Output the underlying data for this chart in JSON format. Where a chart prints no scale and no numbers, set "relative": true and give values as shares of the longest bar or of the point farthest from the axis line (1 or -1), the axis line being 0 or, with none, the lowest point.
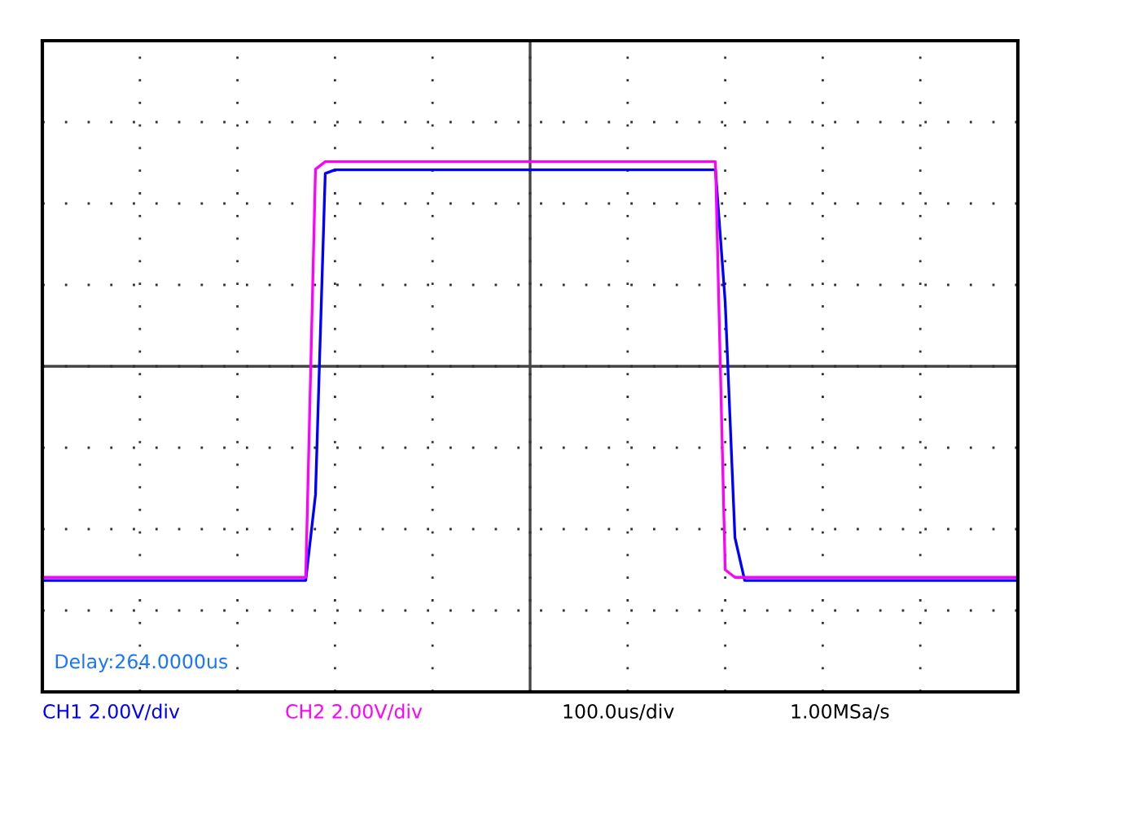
{
  "chart_data": {
    "type": "line",
    "relative": true,
    "grid": true,
    "legend": "bottom",
    "categories": [
      null,
      null,
      null,
      null,
      null,
      null,
      null,
      null,
      null,
      null,
      null,
      null,
      null,
      null,
      null,
      null,
      null,
      null,
      null,
      null,
      null,
      null,
      null,
      null,
      null,
      null,
      null,
      null,
      null,
      null,
      null,
      null,
      null,
      null,
      null,
      null,
      null,
      null,
      null,
      null,
      null,
      null,
      null,
      null,
      null,
      null,
      null,
      null,
      null,
      null,
      null,
      null,
      null,
      null,
      null,
      null,
      null,
      null,
      null,
      null,
      null,
      null,
      null,
      null,
      null,
      null,
      null,
      null,
      null,
      null,
      null,
      null,
      null,
      null,
      null,
      null,
      null,
      null,
      null,
      null,
      null,
      null,
      null,
      null,
      null,
      null,
      null,
      null,
      null,
      null,
      null,
      null,
      null,
      null,
      null,
      null,
      null,
      null,
      null,
      null,
      null
    ],
    "series": [
      {
        "name": "CH1 2.00V/div",
        "color": "#0000ff",
        "values": [
          -1,
          -1,
          -1,
          -1,
          -1,
          -1,
          -1,
          -1,
          -1,
          -1,
          -1,
          -1,
          -1,
          -1,
          -1,
          -1,
          -1,
          -1,
          -1,
          -1,
          -1,
          -1,
          -1,
          -1,
          -1,
          -1,
          -1,
          -1,
          -0.6,
          0.9,
          0.917,
          0.917,
          0.917,
          0.917,
          0.917,
          0.917,
          0.917,
          0.917,
          0.917,
          0.917,
          0.917,
          0.917,
          0.917,
          0.917,
          0.917,
          0.917,
          0.917,
          0.917,
          0.917,
          0.917,
          0.917,
          0.917,
          0.917,
          0.917,
          0.917,
          0.917,
          0.917,
          0.917,
          0.917,
          0.917,
          0.917,
          0.917,
          0.917,
          0.917,
          0.917,
          0.917,
          0.917,
          0.917,
          0.917,
          0.917,
          0.3,
          -0.8,
          -1,
          -1,
          -1,
          -1,
          -1,
          -1,
          -1,
          -1,
          -1,
          -1,
          -1,
          -1,
          -1,
          -1,
          -1,
          -1,
          -1,
          -1,
          -1,
          -1,
          -1,
          -1,
          -1,
          -1,
          -1,
          -1,
          -1,
          -1,
          -1
        ]
      },
      {
        "name": "CH2 2.00V/div",
        "color": "#ff00ff",
        "values": [
          -0.985,
          -0.985,
          -0.985,
          -0.985,
          -0.985,
          -0.985,
          -0.985,
          -0.985,
          -0.985,
          -0.985,
          -0.985,
          -0.985,
          -0.985,
          -0.985,
          -0.985,
          -0.985,
          -0.985,
          -0.985,
          -0.985,
          -0.985,
          -0.985,
          -0.985,
          -0.985,
          -0.985,
          -0.985,
          -0.985,
          -0.985,
          -0.985,
          0.92,
          0.955,
          0.955,
          0.955,
          0.955,
          0.955,
          0.955,
          0.955,
          0.955,
          0.955,
          0.955,
          0.955,
          0.955,
          0.955,
          0.955,
          0.955,
          0.955,
          0.955,
          0.955,
          0.955,
          0.955,
          0.955,
          0.955,
          0.955,
          0.955,
          0.955,
          0.955,
          0.955,
          0.955,
          0.955,
          0.955,
          0.955,
          0.955,
          0.955,
          0.955,
          0.955,
          0.955,
          0.955,
          0.955,
          0.955,
          0.955,
          0.955,
          -0.95,
          -0.985,
          -0.985,
          -0.985,
          -0.985,
          -0.985,
          -0.985,
          -0.985,
          -0.985,
          -0.985,
          -0.985,
          -0.985,
          -0.985,
          -0.985,
          -0.985,
          -0.985,
          -0.985,
          -0.985,
          -0.985,
          -0.985,
          -0.985,
          -0.985,
          -0.985,
          -0.985,
          -0.985,
          -0.985,
          -0.985,
          -0.985,
          -0.985,
          -0.985,
          -0.985
        ]
      }
    ],
    "annotations": [
      "Delay:264.0000us",
      "100.0us/div",
      "1.00MSa/s"
    ]
  }
}
